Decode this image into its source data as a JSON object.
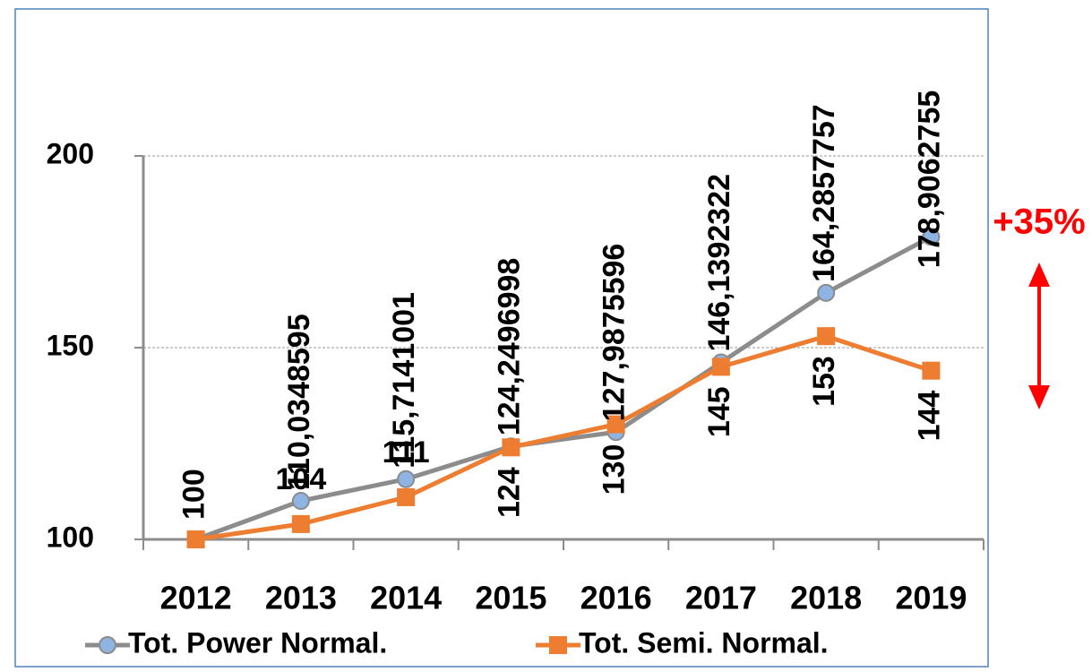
{
  "chart_data": {
    "type": "line",
    "categories": [
      "2012",
      "2013",
      "2014",
      "2015",
      "2016",
      "2017",
      "2018",
      "2019"
    ],
    "series": [
      {
        "name": "Tot. Power Normal.",
        "color": "#8c8c8c",
        "values": [
          100,
          110.0348595,
          115.7141001,
          124.2496998,
          127.9875596,
          146.1392322,
          164.2857757,
          178.9062755
        ],
        "value_labels": [
          null,
          "110,0348595",
          "115,7141001",
          "124,2496998",
          "127,9875596",
          "146,1392322",
          "164,2857757",
          "178,9062755"
        ]
      },
      {
        "name": "Tot. Semi. Normal.",
        "color": "#ed7d31",
        "values": [
          100,
          104,
          111,
          124,
          130,
          145,
          153,
          144
        ]
      }
    ],
    "ylim": [
      100,
      200
    ],
    "yticks": [
      100,
      150,
      200
    ],
    "grid": true,
    "annotation": "+35%",
    "annotation_color": "#ff0000"
  }
}
